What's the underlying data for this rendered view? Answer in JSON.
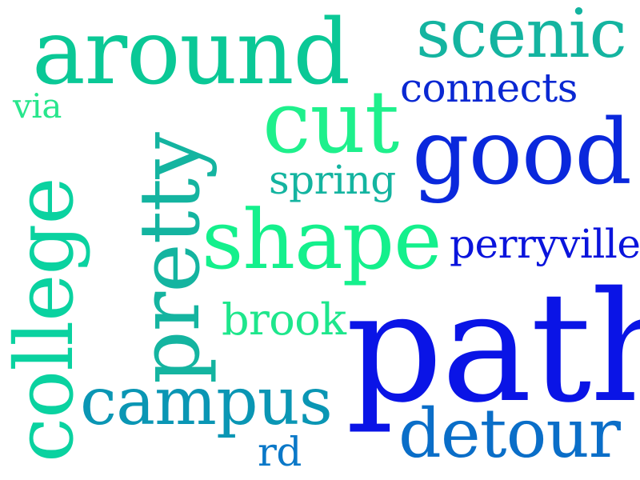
{
  "words": [
    {
      "key": "path",
      "text": "path",
      "color": "#0a14e6"
    },
    {
      "key": "shape",
      "text": "shape",
      "color": "#14f08c"
    },
    {
      "key": "around",
      "text": "around",
      "color": "#0ac896"
    },
    {
      "key": "college",
      "text": "college",
      "color": "#0ad2a0"
    },
    {
      "key": "pretty",
      "text": "pretty",
      "color": "#14b4a0"
    },
    {
      "key": "good",
      "text": "good",
      "color": "#0a28dc"
    },
    {
      "key": "cut",
      "text": "cut",
      "color": "#1ef08c"
    },
    {
      "key": "campus",
      "text": "campus",
      "color": "#0a96b4"
    },
    {
      "key": "scenic",
      "text": "scenic",
      "color": "#14b4a0"
    },
    {
      "key": "detour",
      "text": "detour",
      "color": "#0a6ec8"
    },
    {
      "key": "perryville",
      "text": "perryville",
      "color": "#0a14dc"
    },
    {
      "key": "connects",
      "text": "connects",
      "color": "#0a28d2"
    },
    {
      "key": "brook",
      "text": "brook",
      "color": "#1ee68c"
    },
    {
      "key": "spring",
      "text": "spring",
      "color": "#14b4a0"
    },
    {
      "key": "via",
      "text": "via",
      "color": "#28e68c"
    },
    {
      "key": "rd",
      "text": "rd",
      "color": "#0a78c8"
    }
  ]
}
